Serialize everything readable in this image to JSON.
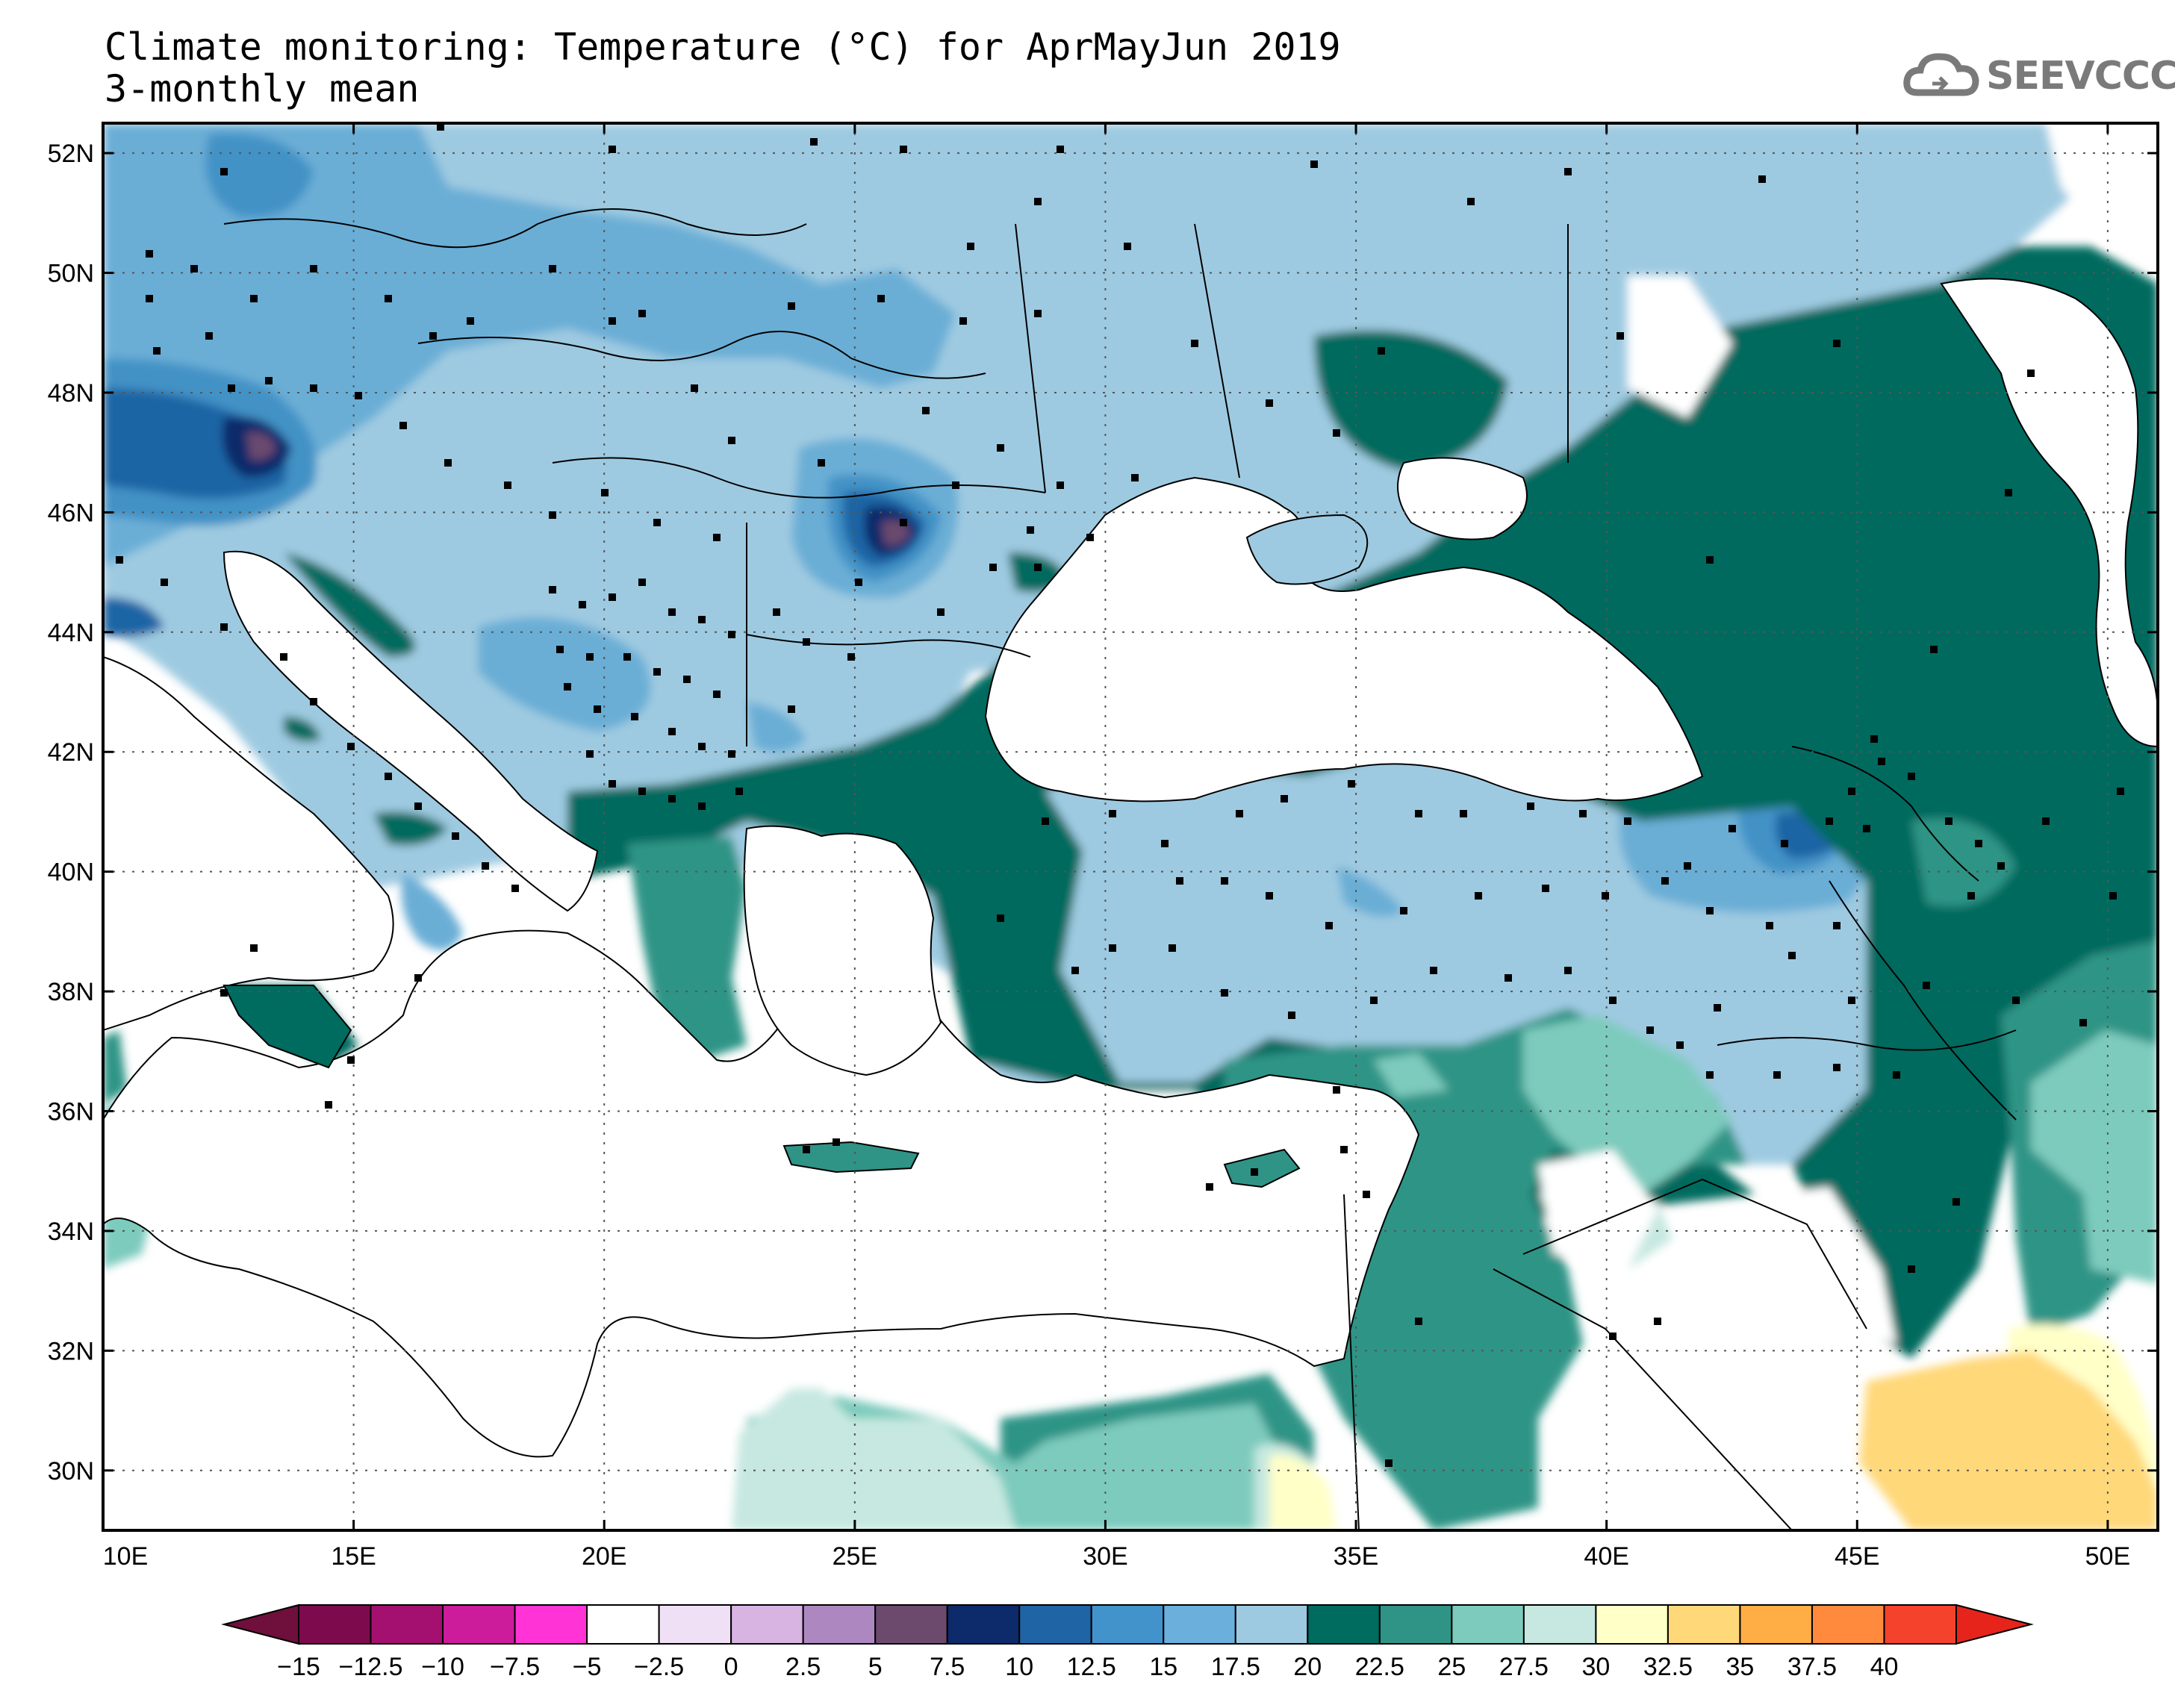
{
  "title": {
    "line1": "Climate monitoring: Temperature (°C) for AprMayJun 2019",
    "line2": "3-monthly mean"
  },
  "logo": {
    "text": "SEEVCCC",
    "icon": "cloud-icon",
    "color": "#7a7a7a"
  },
  "map": {
    "lon_range": [
      10,
      51
    ],
    "lat_range": [
      29,
      52.5
    ],
    "lon_ticks": [
      {
        "value": 10,
        "label": "10E"
      },
      {
        "value": 15,
        "label": "15E"
      },
      {
        "value": 20,
        "label": "20E"
      },
      {
        "value": 25,
        "label": "25E"
      },
      {
        "value": 30,
        "label": "30E"
      },
      {
        "value": 35,
        "label": "35E"
      },
      {
        "value": 40,
        "label": "40E"
      },
      {
        "value": 45,
        "label": "45E"
      },
      {
        "value": 50,
        "label": "50E"
      }
    ],
    "lat_ticks": [
      {
        "value": 30,
        "label": "30N"
      },
      {
        "value": 32,
        "label": "32N"
      },
      {
        "value": 34,
        "label": "34N"
      },
      {
        "value": 36,
        "label": "36N"
      },
      {
        "value": 38,
        "label": "38N"
      },
      {
        "value": 40,
        "label": "40N"
      },
      {
        "value": 42,
        "label": "42N"
      },
      {
        "value": 44,
        "label": "44N"
      },
      {
        "value": 46,
        "label": "46N"
      },
      {
        "value": 48,
        "label": "48N"
      },
      {
        "value": 50,
        "label": "50N"
      },
      {
        "value": 52,
        "label": "52N"
      }
    ],
    "gridlines": "dotted"
  },
  "legend": {
    "labels": [
      "-15",
      "-12.5",
      "-10",
      "-7.5",
      "-5",
      "-2.5",
      "0",
      "2.5",
      "5",
      "7.5",
      "10",
      "12.5",
      "15",
      "17.5",
      "20",
      "22.5",
      "25",
      "27.5",
      "30",
      "32.5",
      "35",
      "37.5",
      "40"
    ],
    "colors": [
      "#7d0a4d",
      "#a3106f",
      "#cc1c9c",
      "#ff33d6",
      "#ffffff",
      "#f0e0f5",
      "#d8b4e2",
      "#ad88c0",
      "#6b4a6e",
      "#0d2a6b",
      "#1f65a5",
      "#4293cc",
      "#6bafdc",
      "#9ecae1",
      "#006b5f",
      "#2f9486",
      "#7dcbbd",
      "#c6e8e0",
      "#ffffc8",
      "#ffd87a",
      "#ffad45",
      "#ff8a3d",
      "#f5422d"
    ],
    "under_color": "#6e0f3c",
    "over_color": "#e6241c"
  }
}
